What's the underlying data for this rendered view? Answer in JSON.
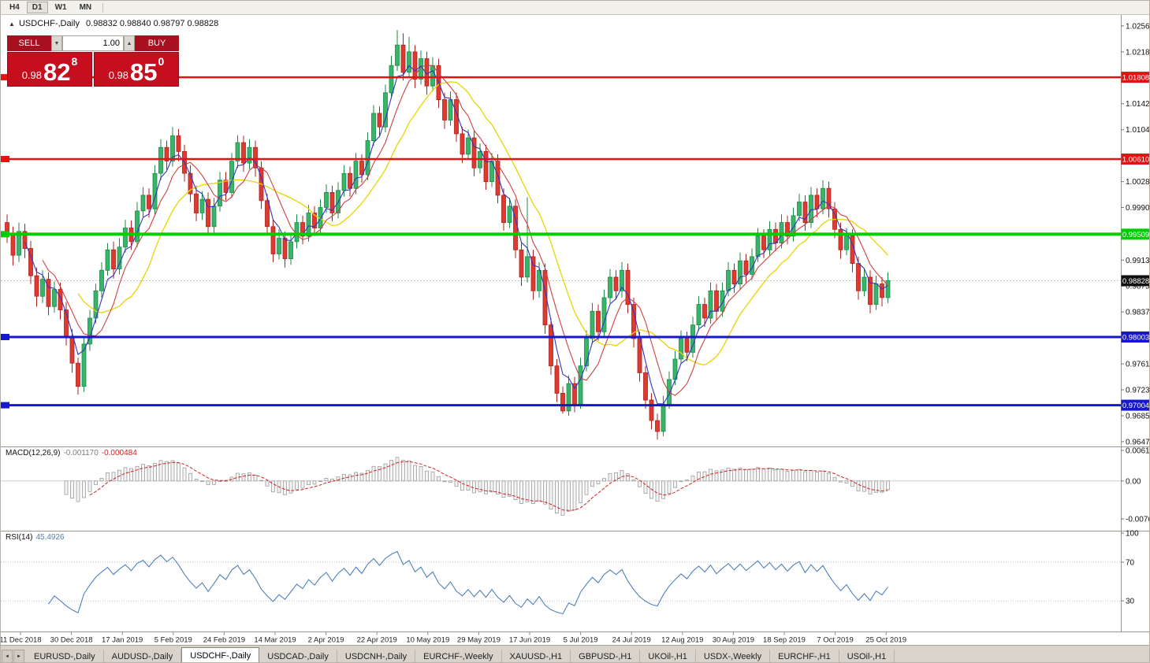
{
  "ui": {
    "topbar": {
      "timeframes": [
        "H4",
        "D1",
        "W1",
        "MN"
      ],
      "active": "D1"
    },
    "chart_header": {
      "arrow": "▲",
      "symbol": "USDCHF-,Daily",
      "ohlc": "0.98832 0.98840 0.98797 0.98828"
    },
    "trade": {
      "sell_label": "SELL",
      "buy_label": "BUY",
      "volume": "1.00",
      "spin_down": "▼",
      "spin_up": "▲",
      "sell_prefix": "0.98",
      "sell_big": "82",
      "sell_sup": "8",
      "buy_prefix": "0.98",
      "buy_big": "85",
      "buy_sup": "0"
    },
    "tabs": {
      "scroll_left": "◄",
      "scroll_right": "►",
      "active_index": 2,
      "items": [
        "EURUSD-,Daily",
        "AUDUSD-,Daily",
        "USDCHF-,Daily",
        "USDCAD-,Daily",
        "USDCNH-,Daily",
        "EURCHF-,Weekly",
        "XAUUSD-,H1",
        "GBPUSD-,H1",
        "UKOil-,H1",
        "USDX-,Weekly",
        "EURCHF-,H1",
        "USOil-,H1"
      ]
    }
  },
  "chart_data": {
    "type": "candlestick",
    "title": "USDCHF-,Daily",
    "timeframe": "Daily",
    "last_ohlc": {
      "open": 0.98832,
      "high": 0.9884,
      "low": 0.98797,
      "close": 0.98828
    },
    "current_price": {
      "value": 0.98828,
      "label": "0.98828"
    },
    "levels": [
      {
        "value": 1.01808,
        "label": "1.01808",
        "color": "#e51212",
        "width": 2.5
      },
      {
        "value": 1.0061,
        "label": "1.00610",
        "color": "#e51212",
        "width": 2.5
      },
      {
        "value": 0.99509,
        "label": "0.99509",
        "color": "#00ce00",
        "width": 4
      },
      {
        "value": 0.98003,
        "label": "0.98003",
        "color": "#1717cf",
        "width": 3
      },
      {
        "value": 0.97004,
        "label": "0.97004",
        "color": "#1717cf",
        "width": 3
      }
    ],
    "y_axis_labels": [
      "1.02560",
      "1.02180",
      "1.01420",
      "1.01040",
      "1.00280",
      "0.99900",
      "0.99130",
      "0.98750",
      "0.98370",
      "0.97610",
      "0.97230",
      "0.96850",
      "0.96470"
    ],
    "x_axis_dates": [
      "11 Dec 2018",
      "30 Dec 2018",
      "17 Jan 2019",
      "5 Feb 2019",
      "24 Feb 2019",
      "14 Mar 2019",
      "2 Apr 2019",
      "22 Apr 2019",
      "10 May 2019",
      "29 May 2019",
      "17 Jun 2019",
      "5 Jul 2019",
      "24 Jul 2019",
      "12 Aug 2019",
      "30 Aug 2019",
      "18 Sep 2019",
      "7 Oct 2019",
      "25 Oct 2019"
    ],
    "indicators": {
      "moving_averages": [
        {
          "name": "fast",
          "color": "#3535bd"
        },
        {
          "name": "medium",
          "color": "#cf4040"
        },
        {
          "name": "slow",
          "color": "#e8d400"
        }
      ],
      "macd": {
        "label": "MACD(12,26,9)",
        "current": "-0.001170",
        "signal": "-0.000484",
        "axis_labels": [
          "0.00613",
          "0.00",
          "-0.00761"
        ]
      },
      "rsi": {
        "label": "RSI(14)",
        "current": "45.4926",
        "axis_labels": [
          "100",
          "70",
          "30"
        ],
        "levels": [
          70,
          30
        ]
      }
    },
    "colors": {
      "up_stroke": "#1c8a46",
      "up_fill": "#38b56b",
      "down_stroke": "#a8231c",
      "down_fill": "#e03a30",
      "ma_fast": "#3535bd",
      "ma_mid": "#cf4040",
      "ma_slow": "#e8d400",
      "macd_signal": "#d42020",
      "rsi": "#4f81bd"
    },
    "candles": [
      [
        0.9968,
        0.998,
        0.9938,
        0.995
      ],
      [
        0.995,
        0.9962,
        0.9905,
        0.992
      ],
      [
        0.992,
        0.9968,
        0.991,
        0.9955
      ],
      [
        0.9955,
        0.9966,
        0.9916,
        0.993
      ],
      [
        0.993,
        0.9941,
        0.9878,
        0.989
      ],
      [
        0.989,
        0.9902,
        0.9845,
        0.986
      ],
      [
        0.986,
        0.9898,
        0.985,
        0.9885
      ],
      [
        0.9885,
        0.9895,
        0.9832,
        0.9845
      ],
      [
        0.9845,
        0.9882,
        0.9836,
        0.987
      ],
      [
        0.987,
        0.988,
        0.9826,
        0.984
      ],
      [
        0.984,
        0.9852,
        0.9788,
        0.98
      ],
      [
        0.98,
        0.9812,
        0.9748,
        0.9762
      ],
      [
        0.9762,
        0.977,
        0.9716,
        0.9728
      ],
      [
        0.9728,
        0.9802,
        0.972,
        0.979
      ],
      [
        0.979,
        0.984,
        0.978,
        0.9828
      ],
      [
        0.9828,
        0.9878,
        0.982,
        0.9868
      ],
      [
        0.9868,
        0.991,
        0.9858,
        0.9898
      ],
      [
        0.9898,
        0.9938,
        0.989,
        0.9928
      ],
      [
        0.9928,
        0.994,
        0.9886,
        0.99
      ],
      [
        0.99,
        0.9945,
        0.9892,
        0.9932
      ],
      [
        0.9932,
        0.9972,
        0.9924,
        0.996
      ],
      [
        0.996,
        0.9971,
        0.9928,
        0.994
      ],
      [
        0.994,
        0.9998,
        0.9932,
        0.9985
      ],
      [
        0.9985,
        1.002,
        0.9976,
        1.0008
      ],
      [
        1.0008,
        1.0018,
        0.9975,
        0.9988
      ],
      [
        0.9988,
        1.0052,
        0.998,
        1.004
      ],
      [
        1.004,
        1.009,
        1.003,
        1.0078
      ],
      [
        1.0078,
        1.0088,
        1.0045,
        1.0058
      ],
      [
        1.0058,
        1.0108,
        1.005,
        1.0095
      ],
      [
        1.0095,
        1.0105,
        1.0058,
        1.0072
      ],
      [
        1.0072,
        1.0082,
        1.0028,
        1.004
      ],
      [
        1.004,
        1.0052,
        0.9998,
        1.001
      ],
      [
        1.001,
        1.0022,
        0.997,
        0.9982
      ],
      [
        0.9982,
        1.0014,
        0.9972,
        1.0002
      ],
      [
        1.0002,
        1.0012,
        0.995,
        0.9962
      ],
      [
        0.9962,
        1.0004,
        0.9952,
        0.9992
      ],
      [
        0.9992,
        1.0042,
        0.9984,
        1.003
      ],
      [
        1.003,
        1.0042,
        1.0,
        1.0012
      ],
      [
        1.0012,
        1.007,
        1.0004,
        1.0058
      ],
      [
        1.0058,
        1.0096,
        1.0048,
        1.0085
      ],
      [
        1.0085,
        1.0095,
        1.0042,
        1.0055
      ],
      [
        1.0055,
        1.009,
        1.0046,
        1.0078
      ],
      [
        1.0078,
        1.0088,
        1.0035,
        1.0048
      ],
      [
        1.0048,
        1.0058,
        0.9988,
        1.0
      ],
      [
        1.0,
        1.001,
        0.995,
        0.9962
      ],
      [
        0.9962,
        0.9972,
        0.991,
        0.9922
      ],
      [
        0.9922,
        0.9958,
        0.9914,
        0.9945
      ],
      [
        0.9945,
        0.9955,
        0.9902,
        0.9915
      ],
      [
        0.9915,
        0.9952,
        0.9906,
        0.994
      ],
      [
        0.994,
        0.998,
        0.993,
        0.9968
      ],
      [
        0.9968,
        0.9978,
        0.9936,
        0.9948
      ],
      [
        0.9948,
        0.9994,
        0.994,
        0.9982
      ],
      [
        0.9982,
        0.9992,
        0.9948,
        0.996
      ],
      [
        0.996,
        1.0002,
        0.9952,
        0.999
      ],
      [
        0.999,
        1.0024,
        0.9982,
        1.0012
      ],
      [
        1.0012,
        1.0022,
        0.997,
        0.9982
      ],
      [
        0.9982,
        1.0027,
        0.9974,
        1.0015
      ],
      [
        1.0015,
        1.0052,
        1.0006,
        1.004
      ],
      [
        1.004,
        1.005,
        1.0006,
        1.0018
      ],
      [
        1.0018,
        1.007,
        1.001,
        1.0058
      ],
      [
        1.0058,
        1.0068,
        1.0026,
        1.0038
      ],
      [
        1.0038,
        1.01,
        1.003,
        1.0088
      ],
      [
        1.0088,
        1.014,
        1.008,
        1.0128
      ],
      [
        1.0128,
        1.0138,
        1.0095,
        1.0108
      ],
      [
        1.0108,
        1.017,
        1.01,
        1.0158
      ],
      [
        1.0158,
        1.0212,
        1.015,
        1.0198
      ],
      [
        1.0198,
        1.025,
        1.019,
        1.0228
      ],
      [
        1.0228,
        1.0245,
        1.0176,
        1.0188
      ],
      [
        1.0188,
        1.024,
        1.018,
        1.0218
      ],
      [
        1.0218,
        1.0228,
        1.0165,
        1.0178
      ],
      [
        1.0178,
        1.022,
        1.017,
        1.0208
      ],
      [
        1.0208,
        1.0218,
        1.0155,
        1.0168
      ],
      [
        1.0168,
        1.021,
        1.016,
        1.0198
      ],
      [
        1.0198,
        1.0208,
        1.0136,
        1.0148
      ],
      [
        1.0148,
        1.0158,
        1.0105,
        1.0118
      ],
      [
        1.0118,
        1.016,
        1.011,
        1.0148
      ],
      [
        1.0148,
        1.0158,
        1.0086,
        1.0098
      ],
      [
        1.0098,
        1.0108,
        1.0055,
        1.0068
      ],
      [
        1.0068,
        1.0104,
        1.006,
        1.0092
      ],
      [
        1.0092,
        1.0102,
        1.0036,
        1.0048
      ],
      [
        1.0048,
        1.0084,
        1.004,
        1.0072
      ],
      [
        1.0072,
        1.0082,
        1.0016,
        1.0028
      ],
      [
        1.0028,
        1.007,
        1.002,
        1.0058
      ],
      [
        1.0058,
        1.0068,
        0.9996,
        1.0008
      ],
      [
        1.0008,
        1.0018,
        0.9956,
        0.9968
      ],
      [
        0.9968,
        1.0004,
        0.996,
        0.9992
      ],
      [
        0.9992,
        1.0002,
        0.9916,
        0.9928
      ],
      [
        0.9928,
        0.9938,
        0.9875,
        0.9888
      ],
      [
        0.9888,
        1.0005,
        0.988,
        0.9918
      ],
      [
        0.9918,
        0.9928,
        0.9855,
        0.9868
      ],
      [
        0.9868,
        0.991,
        0.9858,
        0.9898
      ],
      [
        0.9898,
        0.9908,
        0.9805,
        0.9818
      ],
      [
        0.9818,
        0.9828,
        0.9745,
        0.9758
      ],
      [
        0.9758,
        0.9768,
        0.9705,
        0.9718
      ],
      [
        0.9718,
        0.9728,
        0.9688,
        0.9692
      ],
      [
        0.9692,
        0.9744,
        0.9685,
        0.9732
      ],
      [
        0.9732,
        0.9742,
        0.969,
        0.9702
      ],
      [
        0.9702,
        0.977,
        0.9695,
        0.9758
      ],
      [
        0.9758,
        0.981,
        0.975,
        0.9798
      ],
      [
        0.9798,
        0.985,
        0.979,
        0.9838
      ],
      [
        0.9838,
        0.9848,
        0.9795,
        0.9808
      ],
      [
        0.9808,
        0.987,
        0.98,
        0.9858
      ],
      [
        0.9858,
        0.99,
        0.985,
        0.9888
      ],
      [
        0.9888,
        0.9898,
        0.9855,
        0.9868
      ],
      [
        0.9868,
        0.991,
        0.9858,
        0.9898
      ],
      [
        0.9898,
        0.9908,
        0.9835,
        0.9848
      ],
      [
        0.9848,
        0.9858,
        0.9785,
        0.9798
      ],
      [
        0.9798,
        0.9808,
        0.9735,
        0.9748
      ],
      [
        0.9748,
        0.9758,
        0.9695,
        0.9708
      ],
      [
        0.9708,
        0.9718,
        0.9665,
        0.9678
      ],
      [
        0.9678,
        0.9688,
        0.965,
        0.9662
      ],
      [
        0.9662,
        0.9714,
        0.9655,
        0.9702
      ],
      [
        0.9702,
        0.975,
        0.9695,
        0.9738
      ],
      [
        0.9738,
        0.978,
        0.973,
        0.9768
      ],
      [
        0.9768,
        0.981,
        0.976,
        0.9798
      ],
      [
        0.9798,
        0.9808,
        0.9765,
        0.9778
      ],
      [
        0.9778,
        0.983,
        0.977,
        0.9818
      ],
      [
        0.9818,
        0.986,
        0.981,
        0.9848
      ],
      [
        0.9848,
        0.9858,
        0.9815,
        0.9828
      ],
      [
        0.9828,
        0.988,
        0.982,
        0.9868
      ],
      [
        0.9868,
        0.9878,
        0.9825,
        0.9838
      ],
      [
        0.9838,
        0.988,
        0.983,
        0.9868
      ],
      [
        0.9868,
        0.991,
        0.986,
        0.9898
      ],
      [
        0.9898,
        0.9908,
        0.9865,
        0.9878
      ],
      [
        0.9878,
        0.9924,
        0.987,
        0.9912
      ],
      [
        0.9912,
        0.9922,
        0.988,
        0.9892
      ],
      [
        0.9892,
        0.993,
        0.9884,
        0.9918
      ],
      [
        0.9918,
        0.996,
        0.991,
        0.9948
      ],
      [
        0.9948,
        0.9958,
        0.9916,
        0.9928
      ],
      [
        0.9928,
        0.997,
        0.992,
        0.9958
      ],
      [
        0.9958,
        0.9968,
        0.9926,
        0.9938
      ],
      [
        0.9938,
        0.998,
        0.993,
        0.9968
      ],
      [
        0.9968,
        0.9978,
        0.9936,
        0.9948
      ],
      [
        0.9948,
        0.999,
        0.994,
        0.9978
      ],
      [
        0.9978,
        1.001,
        0.997,
        0.9998
      ],
      [
        0.9998,
        1.0008,
        0.9956,
        0.9968
      ],
      [
        0.9968,
        1.002,
        0.996,
        1.0008
      ],
      [
        1.0008,
        1.0018,
        0.9976,
        0.9988
      ],
      [
        0.9988,
        1.003,
        0.998,
        1.0018
      ],
      [
        1.0018,
        1.0028,
        0.9975,
        0.9988
      ],
      [
        0.9988,
        0.9998,
        0.9945,
        0.9958
      ],
      [
        0.9958,
        0.9968,
        0.9915,
        0.9928
      ],
      [
        0.9928,
        0.996,
        0.992,
        0.9948
      ],
      [
        0.9948,
        0.9958,
        0.9895,
        0.9908
      ],
      [
        0.9908,
        0.9918,
        0.9855,
        0.9868
      ],
      [
        0.9868,
        0.99,
        0.986,
        0.9888
      ],
      [
        0.9888,
        0.9898,
        0.9835,
        0.9848
      ],
      [
        0.9848,
        0.989,
        0.984,
        0.9878
      ],
      [
        0.9878,
        0.9888,
        0.9845,
        0.9858
      ],
      [
        0.9858,
        0.9895,
        0.985,
        0.9883
      ]
    ]
  }
}
